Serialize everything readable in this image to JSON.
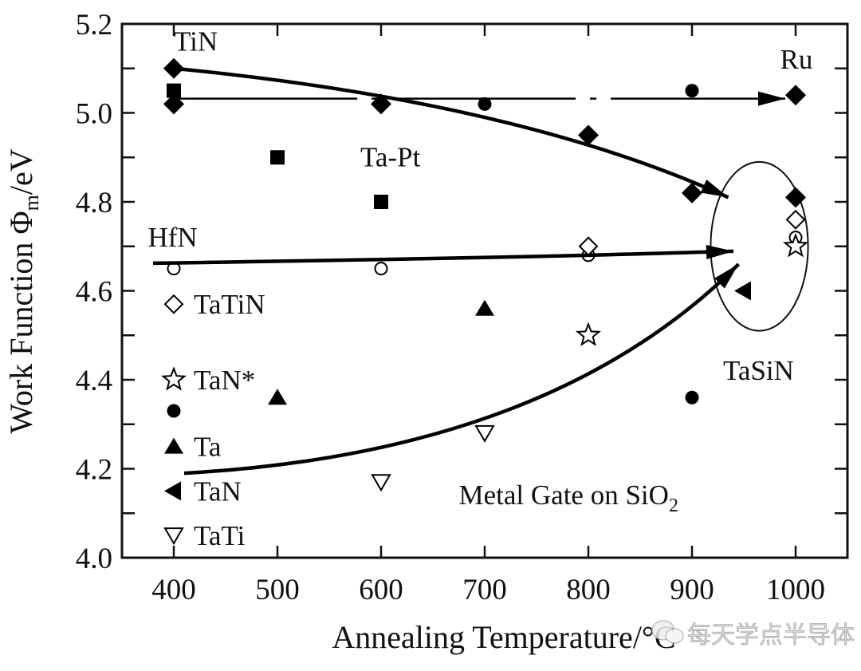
{
  "chart_data": {
    "type": "scatter",
    "title": "",
    "xlabel": "Annealing Temperature/°C",
    "ylabel_parts": {
      "main": "Work Function Φ",
      "sub": "m",
      "tail": "/eV"
    },
    "xlim": [
      350,
      1050
    ],
    "ylim": [
      4.0,
      5.2
    ],
    "x_ticks": [
      400,
      500,
      600,
      700,
      800,
      900,
      1000
    ],
    "x_tick_labels": [
      "400",
      "500",
      "600",
      "700",
      "800",
      "900",
      "1000"
    ],
    "y_ticks": [
      4.0,
      4.2,
      4.4,
      4.6,
      4.8,
      5.0,
      5.2
    ],
    "y_tick_labels": [
      "4.0",
      "4.2",
      "4.4",
      "4.6",
      "4.8",
      "5.0",
      "5.2"
    ],
    "y_minor_ticks": [
      4.1,
      4.3,
      4.5,
      4.7,
      4.9,
      5.1
    ],
    "grid": false,
    "series": [
      {
        "name": "TiN",
        "marker": "diamond-filled",
        "points": [
          [
            400,
            5.1
          ],
          [
            400,
            5.02
          ],
          [
            600,
            5.02
          ],
          [
            800,
            4.95
          ],
          [
            900,
            4.82
          ],
          [
            1000,
            4.81
          ]
        ]
      },
      {
        "name": "Ru",
        "marker": "diamond-filled",
        "points": [
          [
            1000,
            5.04
          ]
        ]
      },
      {
        "name": "Ta-Pt",
        "marker": "square-filled",
        "points": [
          [
            400,
            5.05
          ],
          [
            500,
            4.9
          ],
          [
            600,
            4.8
          ]
        ]
      },
      {
        "name": "TaSiN",
        "marker": "circle-filled",
        "points": [
          [
            700,
            5.02
          ],
          [
            900,
            5.05
          ],
          [
            900,
            4.36
          ]
        ]
      },
      {
        "name": "HfN",
        "marker": "circle-open",
        "points": [
          [
            400,
            4.65
          ],
          [
            600,
            4.65
          ],
          [
            800,
            4.68
          ],
          [
            1000,
            4.72
          ]
        ]
      },
      {
        "name": "TaTiN",
        "marker": "diamond-open",
        "points": [
          [
            800,
            4.7
          ],
          [
            1000,
            4.76
          ]
        ]
      },
      {
        "name": "TaN*",
        "marker": "star-open",
        "points": [
          [
            800,
            4.5
          ],
          [
            1000,
            4.7
          ]
        ]
      },
      {
        "name": "Ta",
        "marker": "triangle-up-filled",
        "points": [
          [
            500,
            4.36
          ],
          [
            700,
            4.56
          ]
        ]
      },
      {
        "name": "TaN",
        "marker": "triangle-left-filled",
        "points": [
          [
            950,
            4.6
          ]
        ]
      },
      {
        "name": "TaTi",
        "marker": "triangle-down-open",
        "points": [
          [
            600,
            4.17
          ],
          [
            700,
            4.28
          ]
        ]
      }
    ],
    "legend": {
      "placement": "left",
      "entries": [
        {
          "label": "TaTiN",
          "marker": "diamond-open",
          "y": 4.57
        },
        {
          "label": "TaN*",
          "marker": "star-open",
          "y": 4.4
        },
        {
          "label": "",
          "marker": "circle-filled",
          "y": 4.33
        },
        {
          "label": "Ta",
          "marker": "triangle-up-filled",
          "y": 4.25
        },
        {
          "label": "TaN",
          "marker": "triangle-left-filled",
          "y": 4.15
        },
        {
          "label": "TaTi",
          "marker": "triangle-down-open",
          "y": 4.05
        }
      ]
    },
    "annotations": [
      {
        "text": "TiN",
        "x": 400,
        "y": 5.14
      },
      {
        "text": "Ru",
        "x": 985,
        "y": 5.1
      },
      {
        "text": "Ta-Pt",
        "x": 580,
        "y": 4.88
      },
      {
        "text": "HfN",
        "x": 375,
        "y": 4.7
      },
      {
        "text": "TaSiN",
        "x": 930,
        "y": 4.4
      },
      {
        "text": "Metal Gate on SiO",
        "sub": "2",
        "x": 675,
        "y": 4.12
      }
    ],
    "trend_arrows": [
      {
        "name": "TiN-trend",
        "style": "solid",
        "from": [
          400,
          5.1
        ],
        "via": [
          700,
          4.99
        ],
        "to": [
          935,
          4.81
        ]
      },
      {
        "name": "Ru-trend",
        "style": "dash-dot",
        "from": [
          400,
          5.032
        ],
        "via": [
          700,
          5.032
        ],
        "to": [
          990,
          5.032
        ]
      },
      {
        "name": "HfN-trend",
        "style": "solid",
        "from": [
          380,
          4.662
        ],
        "via": [
          700,
          4.675
        ],
        "to": [
          940,
          4.689
        ]
      },
      {
        "name": "TaN-trend",
        "style": "solid",
        "from": [
          410,
          4.19
        ],
        "via": [
          720,
          4.33
        ],
        "to": [
          945,
          4.66
        ]
      }
    ],
    "highlight_ellipse": {
      "cx": 965,
      "cy": 4.7,
      "rx_units": 47,
      "ry_units": 0.19
    }
  },
  "watermark": {
    "text": "每天学点半导体",
    "icon": "wechat-icon"
  }
}
